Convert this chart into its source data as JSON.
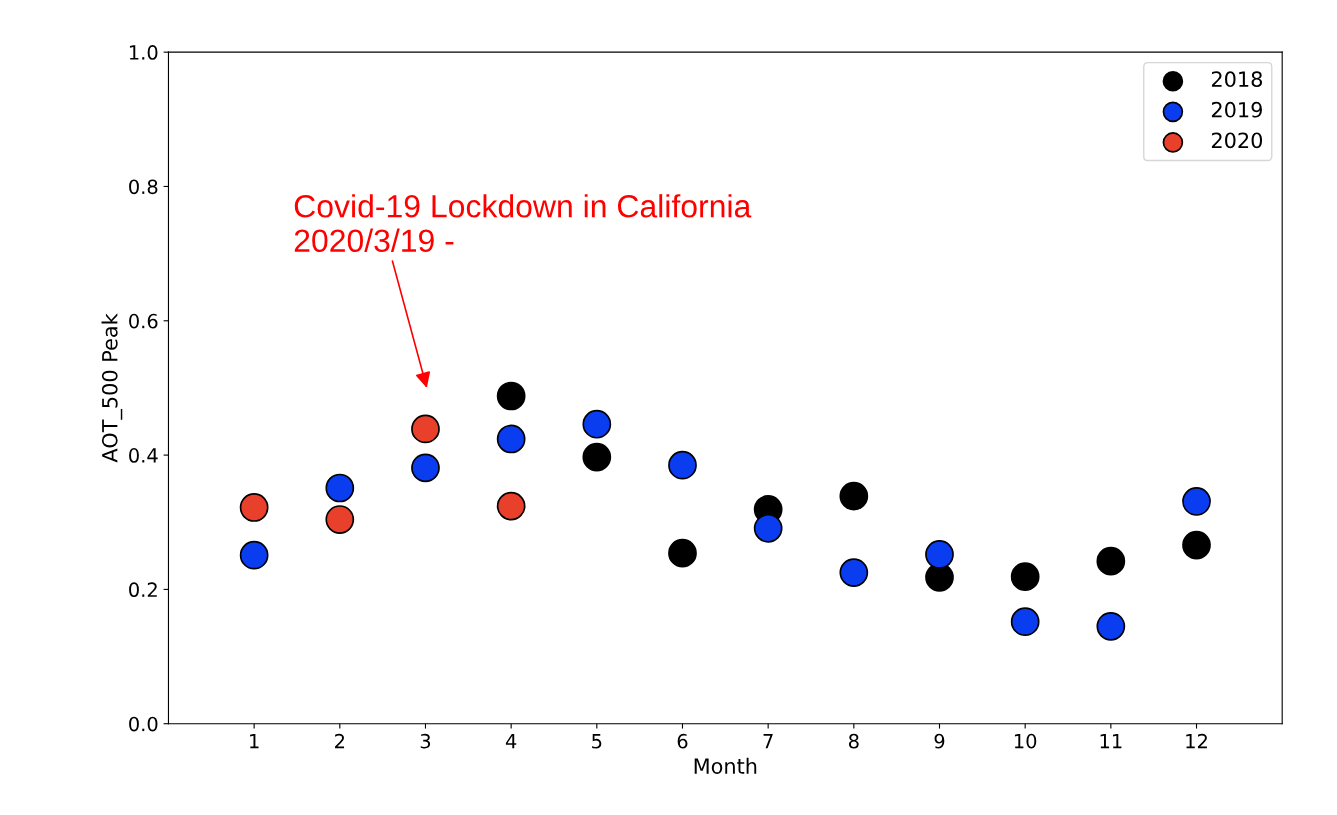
{
  "chart_data": {
    "type": "scatter",
    "xlabel": "Month",
    "ylabel": "AOT_500 Peak",
    "x": [
      1,
      2,
      3,
      4,
      5,
      6,
      7,
      8,
      9,
      10,
      11,
      12
    ],
    "xlim": [
      0,
      13
    ],
    "xticks": [
      1,
      2,
      3,
      4,
      5,
      6,
      7,
      8,
      9,
      10,
      11,
      12
    ],
    "ylim": [
      0,
      1.0
    ],
    "yticks": [
      {
        "value": 0,
        "label": "0.0"
      },
      {
        "value": 0.2,
        "label": "0.2"
      },
      {
        "value": 0.4,
        "label": "0.4"
      },
      {
        "value": 0.6,
        "label": "0.6"
      },
      {
        "value": 0.8,
        "label": "0.8"
      },
      {
        "value": 1.0,
        "label": "1.0"
      }
    ],
    "series": [
      {
        "name": "2018",
        "color": "#000000",
        "values": [
          null,
          null,
          null,
          0.488,
          0.397,
          0.254,
          0.319,
          0.339,
          0.218,
          0.219,
          0.242,
          0.266
        ]
      },
      {
        "name": "2019",
        "color": "#0a3cf0",
        "values": [
          0.251,
          0.351,
          0.381,
          0.424,
          0.446,
          0.385,
          0.291,
          0.225,
          0.252,
          0.152,
          0.145,
          0.331
        ]
      },
      {
        "name": "2020",
        "color": "#e8402a",
        "values": [
          0.322,
          0.304,
          0.439,
          0.324,
          null,
          null,
          null,
          null,
          null,
          null,
          null,
          null
        ]
      }
    ],
    "annotations": [
      "Covid-19 Lockdown in California\n2020/3/19 -"
    ],
    "marker": "circle",
    "legend": "top right",
    "grid": false
  }
}
